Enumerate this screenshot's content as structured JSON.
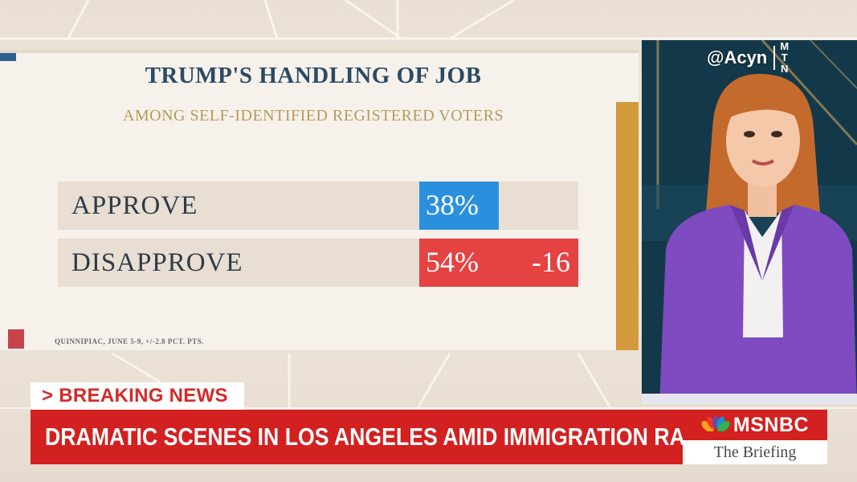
{
  "poll": {
    "title": "TRUMP'S HANDLING OF JOB",
    "subtitle": "AMONG SELF-IDENTIFIED REGISTERED VOTERS",
    "rows": [
      {
        "label": "APPROVE",
        "value": "38%",
        "color": "#2a90dd"
      },
      {
        "label": "DISAPPROVE",
        "value": "54%",
        "net": "-16",
        "color": "#e54242"
      }
    ],
    "source": "QUINNIPIAC, JUNE 5-9, +/-2.8 PCT. PTS."
  },
  "watermark": {
    "handle": "@Acyn",
    "logo_letters": [
      "M",
      "T",
      "N"
    ]
  },
  "lower_third": {
    "label": "> BREAKING NEWS",
    "headline": "DRAMATIC SCENES IN LOS ANGELES AMID IMMIGRATION RAIDS",
    "network": "MSNBC",
    "show": "The Briefing",
    "accent_color": "#d32020"
  },
  "icons": {
    "network_logo": "peacock-icon"
  }
}
